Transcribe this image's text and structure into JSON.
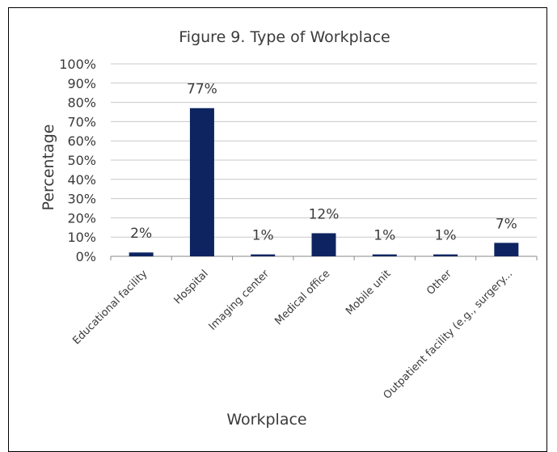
{
  "chart_data": {
    "type": "bar",
    "title": "Figure 9. Type of Workplace",
    "xlabel": "Workplace",
    "ylabel": "Percentage",
    "ylim": [
      0,
      100
    ],
    "yticks": [
      "0%",
      "10%",
      "20%",
      "30%",
      "40%",
      "50%",
      "60%",
      "70%",
      "80%",
      "90%",
      "100%"
    ],
    "categories": [
      "Educational facility",
      "Hospital",
      "Imaging center",
      "Medical office",
      "Mobile unit",
      "Other",
      "Outpatient facility (e.g., surgery..."
    ],
    "values": [
      2,
      77,
      1,
      12,
      1,
      1,
      7
    ],
    "data_labels": [
      "2%",
      "77%",
      "1%",
      "12%",
      "1%",
      "1%",
      "7%"
    ],
    "bar_color": "#0d2460",
    "grid": true,
    "legend": "none"
  }
}
